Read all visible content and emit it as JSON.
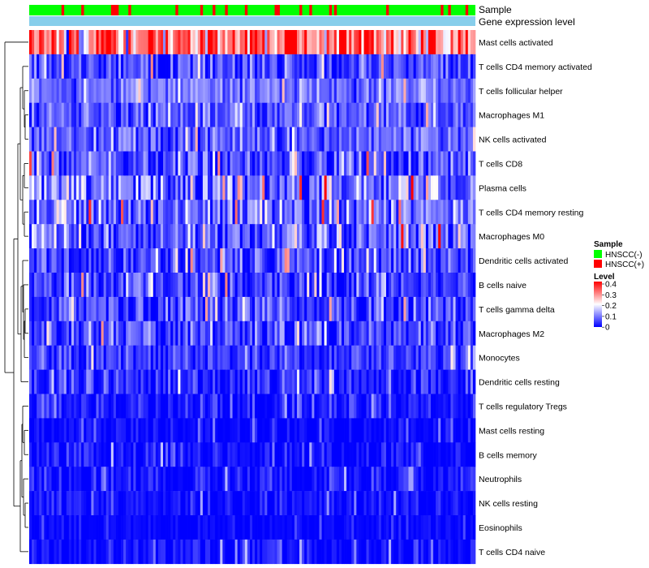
{
  "chart_data": {
    "type": "heatmap",
    "title": "",
    "annotation_rows": [
      {
        "label": "Sample"
      },
      {
        "label": "Gene expression level"
      }
    ],
    "annotation_colors": {
      "HNSCC(-)": "#00ff00",
      "HNSCC(+)": "#ff0000",
      "gene_expression_level": "#87ceeb"
    },
    "rows": [
      {
        "label": "Mast cells activated",
        "mean": 0.31,
        "spread": 0.09
      },
      {
        "label": "T cells CD4 memory activated",
        "mean": 0.05,
        "spread": 0.05
      },
      {
        "label": "T cells follicular helper",
        "mean": 0.09,
        "spread": 0.04
      },
      {
        "label": "Macrophages M1",
        "mean": 0.07,
        "spread": 0.04
      },
      {
        "label": "NK cells activated",
        "mean": 0.07,
        "spread": 0.04
      },
      {
        "label": "T cells CD8",
        "mean": 0.06,
        "spread": 0.06
      },
      {
        "label": "Plasma cells",
        "mean": 0.08,
        "spread": 0.07
      },
      {
        "label": "T cells CD4 memory resting",
        "mean": 0.08,
        "spread": 0.06
      },
      {
        "label": "Macrophages M0",
        "mean": 0.08,
        "spread": 0.07
      },
      {
        "label": "Dendritic cells activated",
        "mean": 0.05,
        "spread": 0.05
      },
      {
        "label": "B cells naive",
        "mean": 0.05,
        "spread": 0.05
      },
      {
        "label": "T cells gamma delta",
        "mean": 0.05,
        "spread": 0.05
      },
      {
        "label": "Macrophages M2",
        "mean": 0.05,
        "spread": 0.05
      },
      {
        "label": "Monocytes",
        "mean": 0.04,
        "spread": 0.04
      },
      {
        "label": "Dendritic cells resting",
        "mean": 0.03,
        "spread": 0.04
      },
      {
        "label": "T cells regulatory  Tregs",
        "mean": 0.015,
        "spread": 0.03
      },
      {
        "label": "Mast cells resting",
        "mean": 0.005,
        "spread": 0.02
      },
      {
        "label": "B cells memory",
        "mean": 0.01,
        "spread": 0.03
      },
      {
        "label": "Neutrophils",
        "mean": 0.01,
        "spread": 0.03
      },
      {
        "label": "NK cells resting",
        "mean": 0.008,
        "spread": 0.025
      },
      {
        "label": "Eosinophils",
        "mean": 0.003,
        "spread": 0.015
      },
      {
        "label": "T cells CD4 naive",
        "mean": 0.008,
        "spread": 0.03
      }
    ],
    "n_samples": 180,
    "hnscc_plus_fraction": 0.13,
    "legend": {
      "sample": {
        "title": "Sample",
        "items": [
          {
            "label": "HNSCC(-)",
            "color": "#00ff00"
          },
          {
            "label": "HNSCC(+)",
            "color": "#ff0000"
          }
        ]
      },
      "level": {
        "title": "Level",
        "ticks": [
          "0.4",
          "0.3",
          "0.2",
          "0.1",
          "0"
        ],
        "range": [
          0,
          0.4
        ],
        "colors": [
          "#0000ff",
          "#ffffff",
          "#ff0000"
        ]
      }
    }
  }
}
